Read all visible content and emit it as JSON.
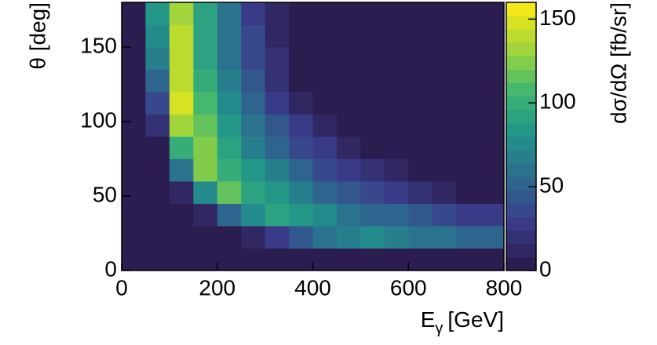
{
  "chart_data": {
    "type": "heatmap",
    "x_label": {
      "main": "E",
      "subscript": "γ",
      "unit": "[GeV]"
    },
    "y_label": "θ [deg]",
    "z_label": "dσ/dΩ [fb/sr]",
    "x_edges": [
      0,
      50,
      100,
      150,
      200,
      250,
      300,
      350,
      400,
      450,
      500,
      550,
      600,
      650,
      700,
      750,
      800
    ],
    "y_edges": [
      0,
      15,
      30,
      45,
      60,
      75,
      90,
      105,
      120,
      135,
      150,
      165,
      180
    ],
    "z": [
      [
        0,
        0,
        0,
        0,
        0,
        0,
        0,
        0,
        0,
        0,
        0,
        0,
        0,
        0,
        0,
        0
      ],
      [
        0,
        0,
        0,
        0,
        0,
        8,
        25,
        42,
        56,
        69,
        75,
        69,
        62,
        57,
        52,
        48
      ],
      [
        0,
        0,
        0,
        15,
        50,
        79,
        95,
        84,
        73,
        63,
        55,
        48,
        41,
        35,
        29,
        24
      ],
      [
        0,
        0,
        15,
        72,
        114,
        95,
        80,
        67,
        55,
        45,
        36,
        27,
        20,
        13,
        7,
        2
      ],
      [
        0,
        0,
        60,
        120,
        103,
        82,
        66,
        51,
        39,
        28,
        18,
        9,
        1,
        0,
        0,
        0
      ],
      [
        0,
        0,
        96,
        120,
        92,
        70,
        53,
        37,
        24,
        12,
        1,
        0,
        0,
        0,
        0,
        0
      ],
      [
        0,
        19,
        132,
        112,
        83,
        59,
        41,
        25,
        10,
        0,
        0,
        0,
        0,
        0,
        0,
        0
      ],
      [
        0,
        38,
        148,
        105,
        74,
        50,
        31,
        14,
        0,
        0,
        0,
        0,
        0,
        0,
        0,
        0
      ],
      [
        0,
        54,
        143,
        99,
        67,
        43,
        23,
        5,
        0,
        0,
        0,
        0,
        0,
        0,
        0,
        0
      ],
      [
        0,
        67,
        139,
        94,
        62,
        37,
        16,
        0,
        0,
        0,
        0,
        0,
        0,
        0,
        0,
        0
      ],
      [
        0,
        77,
        136,
        91,
        59,
        33,
        12,
        0,
        0,
        0,
        0,
        0,
        0,
        0,
        0,
        0
      ],
      [
        0,
        80,
        135,
        90,
        57,
        31,
        10,
        0,
        0,
        0,
        0,
        0,
        0,
        0,
        0,
        0
      ]
    ],
    "xlim": [
      0,
      800
    ],
    "xticks": [
      0,
      200,
      400,
      600,
      800
    ],
    "ylim": [
      0,
      180
    ],
    "yticks": [
      0,
      50,
      100,
      150
    ],
    "zlim": [
      0,
      160
    ],
    "zticks": [
      0,
      50,
      100,
      150
    ],
    "levels": 20,
    "colorscale": [
      "#2b1d50",
      "#3a3d8b",
      "#2d6a8e",
      "#21918c",
      "#3bb574",
      "#9cd43d",
      "#f3e818"
    ]
  }
}
